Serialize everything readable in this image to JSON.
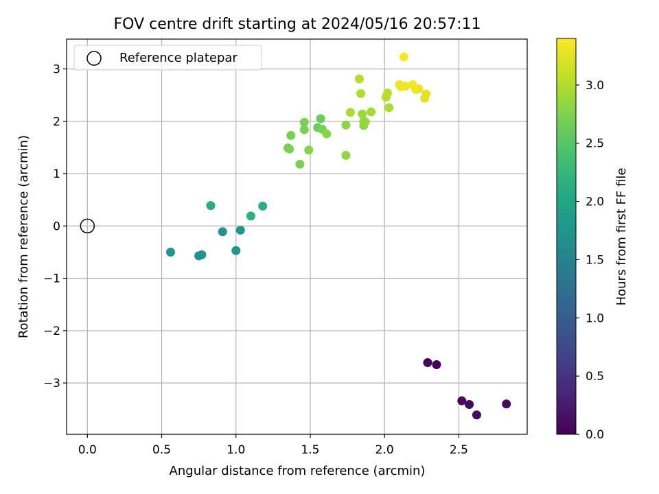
{
  "chart_data": {
    "type": "scatter",
    "title": "FOV centre drift starting at 2024/05/16 20:57:11",
    "xlabel": "Angular distance from reference (arcmin)",
    "ylabel": "Rotation from reference (arcmin)",
    "xlim": [
      -0.14,
      2.96
    ],
    "ylim": [
      -3.98,
      3.57
    ],
    "xticks": [
      0.0,
      0.5,
      1.0,
      1.5,
      2.0,
      2.5
    ],
    "xtick_labels": [
      "0.0",
      "0.5",
      "1.0",
      "1.5",
      "2.0",
      "2.5"
    ],
    "yticks": [
      -3,
      -2,
      -1,
      0,
      1,
      2,
      3
    ],
    "ytick_labels": [
      "−3",
      "−2",
      "−1",
      "0",
      "1",
      "2",
      "3"
    ],
    "grid": true,
    "legend": {
      "placement": "top-left",
      "entries": [
        "Reference platepar"
      ]
    },
    "reference_point": {
      "x": 0.0,
      "y": 0.0
    },
    "colorbar": {
      "label": "Hours from first FF file",
      "colormap": "viridis",
      "range": [
        0.0,
        3.4
      ],
      "ticks": [
        0.0,
        0.5,
        1.0,
        1.5,
        2.0,
        2.5,
        3.0
      ],
      "tick_labels": [
        "0.0",
        "0.5",
        "1.0",
        "1.5",
        "2.0",
        "2.5",
        "3.0"
      ]
    },
    "points": [
      {
        "x": 2.29,
        "y": -2.61,
        "c": 0.02
      },
      {
        "x": 2.35,
        "y": -2.65,
        "c": 0.04
      },
      {
        "x": 2.52,
        "y": -3.34,
        "c": 0.06
      },
      {
        "x": 2.57,
        "y": -3.41,
        "c": 0.08
      },
      {
        "x": 2.62,
        "y": -3.61,
        "c": 0.1
      },
      {
        "x": 2.82,
        "y": -3.4,
        "c": 0.12
      },
      {
        "x": 0.56,
        "y": -0.5,
        "c": 1.75
      },
      {
        "x": 0.75,
        "y": -0.57,
        "c": 1.7
      },
      {
        "x": 0.77,
        "y": -0.55,
        "c": 1.72
      },
      {
        "x": 0.91,
        "y": -0.11,
        "c": 1.72
      },
      {
        "x": 1.0,
        "y": -0.47,
        "c": 1.76
      },
      {
        "x": 1.03,
        "y": -0.08,
        "c": 1.78
      },
      {
        "x": 0.83,
        "y": 0.39,
        "c": 2.1
      },
      {
        "x": 1.1,
        "y": 0.19,
        "c": 2.15
      },
      {
        "x": 1.18,
        "y": 0.38,
        "c": 2.15
      },
      {
        "x": 1.35,
        "y": 1.49,
        "c": 2.72
      },
      {
        "x": 1.36,
        "y": 1.47,
        "c": 2.72
      },
      {
        "x": 1.37,
        "y": 1.73,
        "c": 2.7
      },
      {
        "x": 1.43,
        "y": 1.18,
        "c": 2.72
      },
      {
        "x": 1.46,
        "y": 1.84,
        "c": 2.72
      },
      {
        "x": 1.46,
        "y": 1.98,
        "c": 2.72
      },
      {
        "x": 1.49,
        "y": 1.45,
        "c": 2.78
      },
      {
        "x": 1.55,
        "y": 1.88,
        "c": 2.64
      },
      {
        "x": 1.57,
        "y": 2.05,
        "c": 2.62
      },
      {
        "x": 1.58,
        "y": 1.85,
        "c": 2.7
      },
      {
        "x": 1.61,
        "y": 1.76,
        "c": 2.8
      },
      {
        "x": 1.74,
        "y": 1.93,
        "c": 2.82
      },
      {
        "x": 1.74,
        "y": 1.35,
        "c": 2.84
      },
      {
        "x": 1.77,
        "y": 2.17,
        "c": 2.96
      },
      {
        "x": 1.83,
        "y": 2.81,
        "c": 3.02
      },
      {
        "x": 1.84,
        "y": 2.53,
        "c": 3.0
      },
      {
        "x": 1.85,
        "y": 2.14,
        "c": 2.88
      },
      {
        "x": 1.86,
        "y": 1.92,
        "c": 2.84
      },
      {
        "x": 1.86,
        "y": 2.0,
        "c": 2.88
      },
      {
        "x": 1.87,
        "y": 1.99,
        "c": 2.86
      },
      {
        "x": 1.91,
        "y": 2.18,
        "c": 2.94
      },
      {
        "x": 2.01,
        "y": 2.46,
        "c": 3.02
      },
      {
        "x": 2.02,
        "y": 2.54,
        "c": 3.04
      },
      {
        "x": 2.03,
        "y": 2.26,
        "c": 2.98
      },
      {
        "x": 2.1,
        "y": 2.7,
        "c": 3.3
      },
      {
        "x": 2.11,
        "y": 2.66,
        "c": 3.32
      },
      {
        "x": 2.13,
        "y": 3.23,
        "c": 3.38
      },
      {
        "x": 2.14,
        "y": 2.67,
        "c": 3.32
      },
      {
        "x": 2.19,
        "y": 2.7,
        "c": 3.34
      },
      {
        "x": 2.21,
        "y": 2.61,
        "c": 3.3
      },
      {
        "x": 2.23,
        "y": 2.62,
        "c": 3.3
      },
      {
        "x": 2.27,
        "y": 2.44,
        "c": 3.22
      },
      {
        "x": 2.28,
        "y": 2.52,
        "c": 3.26
      }
    ]
  }
}
